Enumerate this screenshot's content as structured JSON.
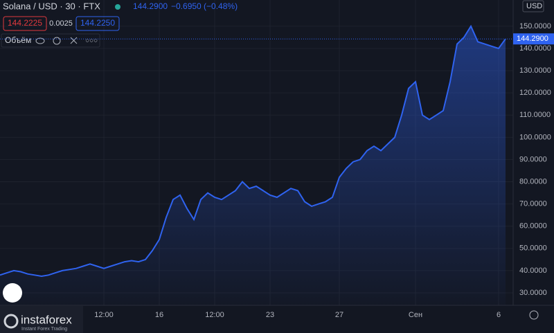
{
  "header": {
    "symbol": "Solana / USD · 30 · FTX",
    "price": "144.2900",
    "change": "−0.6950 (−0.48%)",
    "bid": "144.2225",
    "spread": "0.0025",
    "ask": "144.2250",
    "volume_label": "Объём",
    "currency": "USD",
    "brand": "instaforex",
    "brand_sub": "Instant Forex Trading"
  },
  "chart_data": {
    "type": "line",
    "categories": [
      null,
      null,
      null,
      null,
      null,
      null,
      null,
      null,
      null,
      null,
      null,
      null,
      null,
      null,
      null,
      "12:00",
      null,
      null,
      null,
      null,
      null,
      null,
      null,
      "16",
      null,
      null,
      null,
      null,
      null,
      null,
      null,
      "12:00",
      null,
      null,
      null,
      null,
      null,
      null,
      null,
      "23",
      null,
      null,
      null,
      null,
      null,
      null,
      null,
      null,
      null,
      "27",
      null,
      null,
      null,
      null,
      null,
      null,
      null,
      null,
      null,
      null,
      "Сен",
      null,
      null,
      null,
      null,
      null,
      null,
      null,
      null,
      null,
      null,
      null,
      "6",
      null
    ],
    "series": [
      {
        "name": "Solana / USD",
        "color": "#2f63f0",
        "values": [
          38,
          39,
          40,
          39.5,
          38.5,
          38,
          37.5,
          38,
          39,
          40,
          40.5,
          41,
          42,
          43,
          42,
          41,
          42,
          43,
          44,
          44.5,
          44,
          45,
          49,
          54,
          64,
          72,
          74,
          68,
          63,
          72,
          75,
          73,
          72,
          74,
          76,
          80,
          77,
          78,
          76,
          74,
          73,
          75,
          77,
          76,
          71,
          69,
          70,
          71,
          73,
          82,
          86,
          89,
          90,
          94,
          96,
          94,
          97,
          100,
          110,
          122,
          125,
          110,
          108,
          110,
          112,
          125,
          142,
          145,
          150,
          143,
          142,
          141,
          140,
          144.29
        ]
      }
    ],
    "ylim": [
      24.4,
      161.8
    ],
    "yticks": [
      {
        "value": 30,
        "label": "30.0000"
      },
      {
        "value": 40,
        "label": "40.0000"
      },
      {
        "value": 50,
        "label": "50.0000"
      },
      {
        "value": 60,
        "label": "60.0000"
      },
      {
        "value": 70,
        "label": "70.0000"
      },
      {
        "value": 80,
        "label": "80.0000"
      },
      {
        "value": 90,
        "label": "90.0000"
      },
      {
        "value": 100,
        "label": "100.0000"
      },
      {
        "value": 110,
        "label": "110.0000"
      },
      {
        "value": 120,
        "label": "120.0000"
      },
      {
        "value": 130,
        "label": "130.0000"
      },
      {
        "value": 140,
        "label": "140.0000"
      },
      {
        "value": 150,
        "label": "150.0000"
      }
    ],
    "grid": true
  }
}
